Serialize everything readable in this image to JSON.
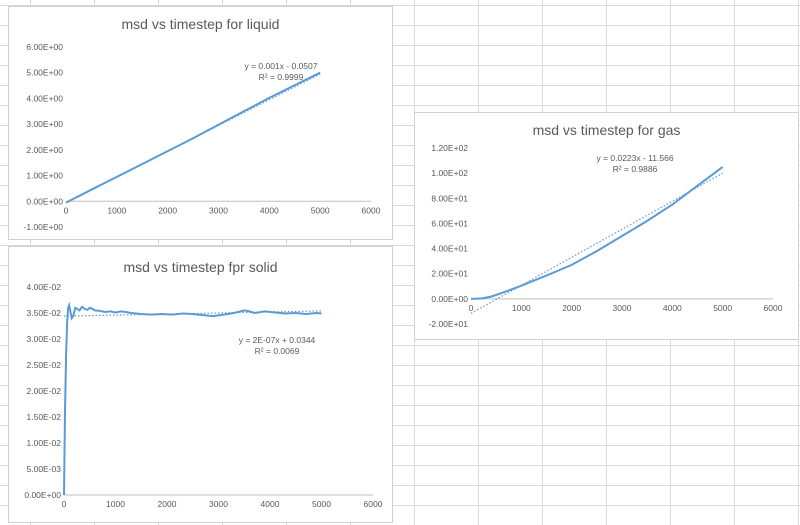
{
  "chart_data": [
    {
      "id": "liquid",
      "type": "line",
      "title": "msd vs timestep for liquid",
      "xlabel": "",
      "ylabel": "",
      "xlim": [
        0,
        6000
      ],
      "ylim": [
        -1.0,
        6.0
      ],
      "x_ticks": [
        0,
        1000,
        2000,
        3000,
        4000,
        5000,
        6000
      ],
      "x_tick_labels": [
        "0",
        "1000",
        "2000",
        "3000",
        "4000",
        "5000",
        "6000"
      ],
      "y_ticks": [
        -1,
        0,
        1,
        2,
        3,
        4,
        5,
        6
      ],
      "y_tick_labels": [
        "-1.00E+00",
        "0.00E+00",
        "1.00E+00",
        "2.00E+00",
        "3.00E+00",
        "4.00E+00",
        "5.00E+00",
        "6.00E+00"
      ],
      "grid": false,
      "series": [
        {
          "x": [
            0,
            500,
            1000,
            1500,
            2000,
            2500,
            3000,
            3500,
            4000,
            4500,
            5000
          ],
          "y": [
            -0.05,
            0.45,
            0.95,
            1.45,
            1.95,
            2.45,
            2.98,
            3.5,
            4.02,
            4.52,
            5.0
          ]
        }
      ],
      "trendline": {
        "slope": 0.001,
        "intercept": -0.0507,
        "equation": "y = 0.001x - 0.0507",
        "r2": "R² = 0.9999"
      },
      "line_color": "#5b9bd5"
    },
    {
      "id": "solid",
      "type": "line",
      "title": "msd vs timestep fpr solid",
      "xlabel": "",
      "ylabel": "",
      "xlim": [
        0,
        6000
      ],
      "ylim": [
        0,
        0.04
      ],
      "x_ticks": [
        0,
        1000,
        2000,
        3000,
        4000,
        5000,
        6000
      ],
      "x_tick_labels": [
        "0",
        "1000",
        "2000",
        "3000",
        "4000",
        "5000",
        "6000"
      ],
      "y_ticks": [
        0,
        0.005,
        0.01,
        0.015,
        0.02,
        0.025,
        0.03,
        0.035,
        0.04
      ],
      "y_tick_labels": [
        "0.00E+00",
        "5.00E-03",
        "1.00E-02",
        "1.50E-02",
        "2.00E-02",
        "2.50E-02",
        "3.00E-02",
        "3.50E-02",
        "4.00E-02"
      ],
      "grid": false,
      "series": [
        {
          "x": [
            0,
            20,
            40,
            60,
            80,
            100,
            120,
            150,
            180,
            220,
            260,
            300,
            350,
            400,
            450,
            500,
            550,
            600,
            700,
            800,
            900,
            1000,
            1100,
            1200,
            1300,
            1400,
            1500,
            1700,
            1900,
            2100,
            2300,
            2500,
            2700,
            2900,
            3100,
            3300,
            3500,
            3600,
            3700,
            3900,
            4100,
            4300,
            4500,
            4700,
            4900,
            5000
          ],
          "y": [
            0.0,
            0.016,
            0.027,
            0.033,
            0.036,
            0.0365,
            0.0355,
            0.034,
            0.0345,
            0.036,
            0.0358,
            0.0355,
            0.0362,
            0.0358,
            0.0356,
            0.036,
            0.0358,
            0.0355,
            0.0354,
            0.0352,
            0.0353,
            0.0351,
            0.0353,
            0.0352,
            0.035,
            0.0349,
            0.0348,
            0.0347,
            0.0348,
            0.0347,
            0.0349,
            0.0348,
            0.0346,
            0.0344,
            0.0347,
            0.035,
            0.0355,
            0.0353,
            0.035,
            0.0353,
            0.0351,
            0.0349,
            0.035,
            0.0348,
            0.035,
            0.0349
          ]
        }
      ],
      "trendline": {
        "slope": 2e-07,
        "intercept": 0.0344,
        "equation": "y = 2E-07x + 0.0344",
        "r2": "R² = 0.0069"
      },
      "line_color": "#5b9bd5"
    },
    {
      "id": "gas",
      "type": "line",
      "title": "msd vs timestep for gas",
      "xlabel": "",
      "ylabel": "",
      "xlim": [
        0,
        6000
      ],
      "ylim": [
        -20,
        120
      ],
      "x_ticks": [
        0,
        1000,
        2000,
        3000,
        4000,
        5000,
        6000
      ],
      "x_tick_labels": [
        "0",
        "1000",
        "2000",
        "3000",
        "4000",
        "5000",
        "6000"
      ],
      "y_ticks": [
        -20,
        0,
        20,
        40,
        60,
        80,
        100,
        120
      ],
      "y_tick_labels": [
        "-2.00E+01",
        "0.00E+00",
        "2.00E+01",
        "4.00E+01",
        "6.00E+01",
        "8.00E+01",
        "1.00E+02",
        "1.20E+02"
      ],
      "grid": false,
      "series": [
        {
          "x": [
            0,
            200,
            400,
            600,
            800,
            1000,
            1500,
            2000,
            2500,
            3000,
            3500,
            4000,
            4500,
            5000
          ],
          "y": [
            0.0,
            0.3,
            1.8,
            4.5,
            7.5,
            10.5,
            18.5,
            27.0,
            38.0,
            50.0,
            62.0,
            75.0,
            90.0,
            105.0
          ]
        }
      ],
      "trendline": {
        "slope": 0.0223,
        "intercept": -11.566,
        "equation": "y = 0.0223x - 11.566",
        "r2": "R² = 0.9886"
      },
      "line_color": "#5b9bd5"
    }
  ]
}
